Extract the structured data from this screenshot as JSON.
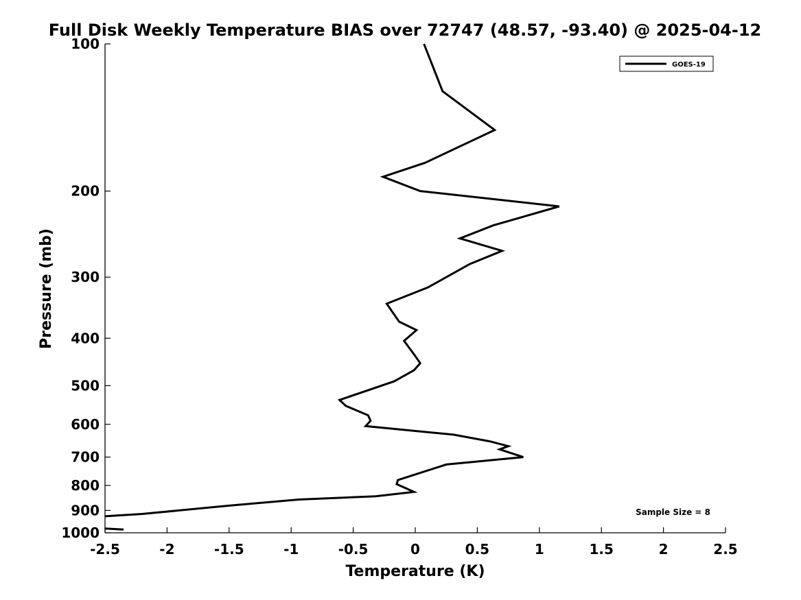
{
  "chart_data": {
    "type": "line",
    "title": "Full Disk Weekly Temperature BIAS over 72747 (48.57, -93.40) @ 2025-04-12",
    "xlabel": "Temperature (K)",
    "ylabel": "Pressure (mb)",
    "xlim": [
      -2.5,
      2.5
    ],
    "ylim": [
      100,
      1000
    ],
    "y_scale": "log",
    "y_reversed": true,
    "grid": false,
    "x_ticks": [
      -2.5,
      -2,
      -1.5,
      -1,
      -0.5,
      0,
      0.5,
      1,
      1.5,
      2,
      2.5
    ],
    "x_tick_labels": [
      "-2.5",
      "-2",
      "-1.5",
      "-1",
      "-0.5",
      "0",
      "0.5",
      "1",
      "1.5",
      "2",
      "2.5"
    ],
    "y_ticks": [
      100,
      200,
      300,
      400,
      500,
      600,
      700,
      800,
      900,
      1000
    ],
    "y_tick_labels": [
      "100",
      "200",
      "300",
      "400",
      "500",
      "600",
      "700",
      "800",
      "900",
      "1000"
    ],
    "legend": {
      "position": "top-right"
    },
    "annotation": "Sample Size = 8",
    "series": [
      {
        "name": "GOES-19",
        "color": "#000000",
        "points": [
          [
            0.07,
            100
          ],
          [
            0.22,
            125
          ],
          [
            0.64,
            150
          ],
          [
            0.08,
            175
          ],
          [
            -0.26,
            187
          ],
          [
            0.04,
            200
          ],
          [
            1.16,
            215
          ],
          [
            0.63,
            235
          ],
          [
            0.36,
            250
          ],
          [
            0.7,
            265
          ],
          [
            0.44,
            282
          ],
          [
            0.1,
            315
          ],
          [
            -0.23,
            340
          ],
          [
            -0.13,
            370
          ],
          [
            0.01,
            385
          ],
          [
            -0.09,
            405
          ],
          [
            0.0,
            435
          ],
          [
            0.04,
            450
          ],
          [
            -0.01,
            465
          ],
          [
            -0.17,
            490
          ],
          [
            -0.61,
            535
          ],
          [
            -0.56,
            550
          ],
          [
            -0.38,
            575
          ],
          [
            -0.36,
            590
          ],
          [
            -0.4,
            605
          ],
          [
            0.31,
            630
          ],
          [
            0.6,
            650
          ],
          [
            0.75,
            665
          ],
          [
            0.68,
            675
          ],
          [
            0.87,
            700
          ],
          [
            0.25,
            725
          ],
          [
            -0.14,
            780
          ],
          [
            -0.15,
            795
          ],
          [
            -0.01,
            825
          ],
          [
            -0.32,
            842
          ],
          [
            -0.94,
            855
          ],
          [
            -1.5,
            880
          ],
          [
            -2.2,
            915
          ],
          [
            -2.5,
            925
          ]
        ]
      },
      {
        "name": "GOES-19",
        "color": "#000000",
        "points": [
          [
            -2.5,
            980
          ],
          [
            -2.35,
            985
          ]
        ]
      }
    ]
  }
}
